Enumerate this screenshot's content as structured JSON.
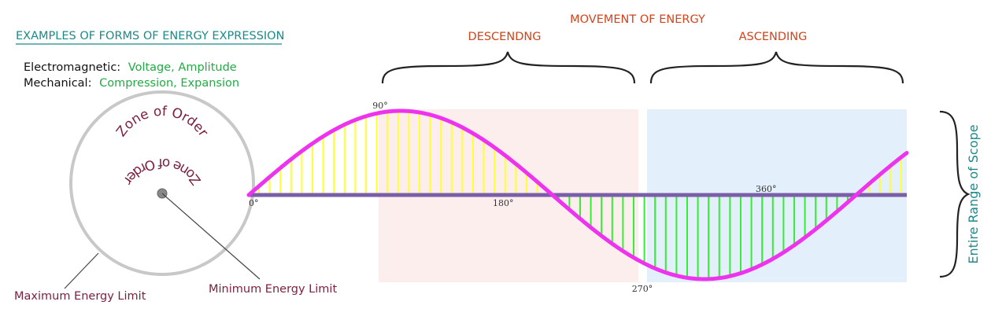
{
  "heading": {
    "title": "EXAMPLES OF FORMS OF ENERGY EXPRESSION",
    "color": "#1a8a8a"
  },
  "examples": [
    {
      "category": "Electromagnetic:",
      "terms": "Voltage, Amplitude"
    },
    {
      "category": "Mechanical:",
      "terms": "Compression, Expansion"
    }
  ],
  "movement": {
    "title": "MOVEMENT OF ENERGY",
    "descending": "DESCENDNG",
    "ascending": "ASCENDING",
    "color": "#d4441c"
  },
  "circle": {
    "zone_top": "Zone of Order",
    "zone_bottom": "Zone of Order",
    "max_label": "Maximum Energy Limit",
    "min_label": "Minimum Energy Limit",
    "label_color": "#7a1f3d"
  },
  "wave": {
    "degrees": [
      "0°",
      "90°",
      "180°",
      "270°",
      "360°"
    ],
    "curve_color": "#ee33ee",
    "positive_fill": "#ffff33",
    "negative_fill": "#33ee33",
    "axis_color": "#7a5fa8",
    "descending_bg": "#fdeeee",
    "ascending_bg": "#e3effb"
  },
  "scope": {
    "label": "Entire Range of Scope",
    "color": "#1a8a8a"
  },
  "colors": {
    "example_terms": "#22aa44",
    "example_category": "#111111"
  }
}
